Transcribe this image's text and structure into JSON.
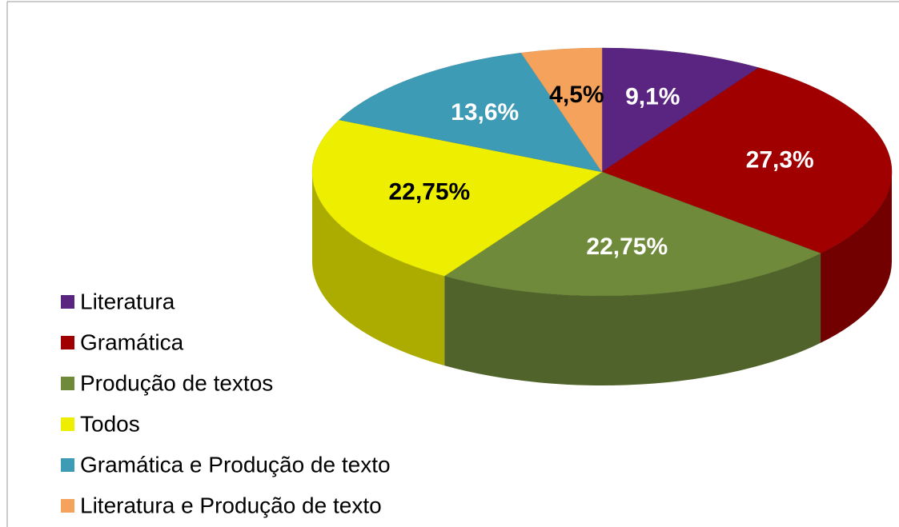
{
  "chart_data": {
    "type": "pie",
    "categories": [
      "Literatura",
      "Gramática",
      "Produção de textos",
      "Todos",
      "Gramática e  Produção  de texto",
      "Literatura e Produção de texto"
    ],
    "values": [
      9.1,
      27.3,
      22.75,
      22.75,
      13.6,
      4.5
    ],
    "value_labels": [
      "9,1%",
      "27,3%",
      "22,75%",
      "22,75%",
      "13,6%",
      "4,5%"
    ],
    "colors": [
      "#5a2580",
      "#a00000",
      "#6e8a3a",
      "#eeee00",
      "#3d9bb5",
      "#f5a25c"
    ],
    "label_colors": [
      "#ffffff",
      "#ffffff",
      "#ffffff",
      "#000000",
      "#ffffff",
      "#000000"
    ],
    "legend": "left"
  }
}
